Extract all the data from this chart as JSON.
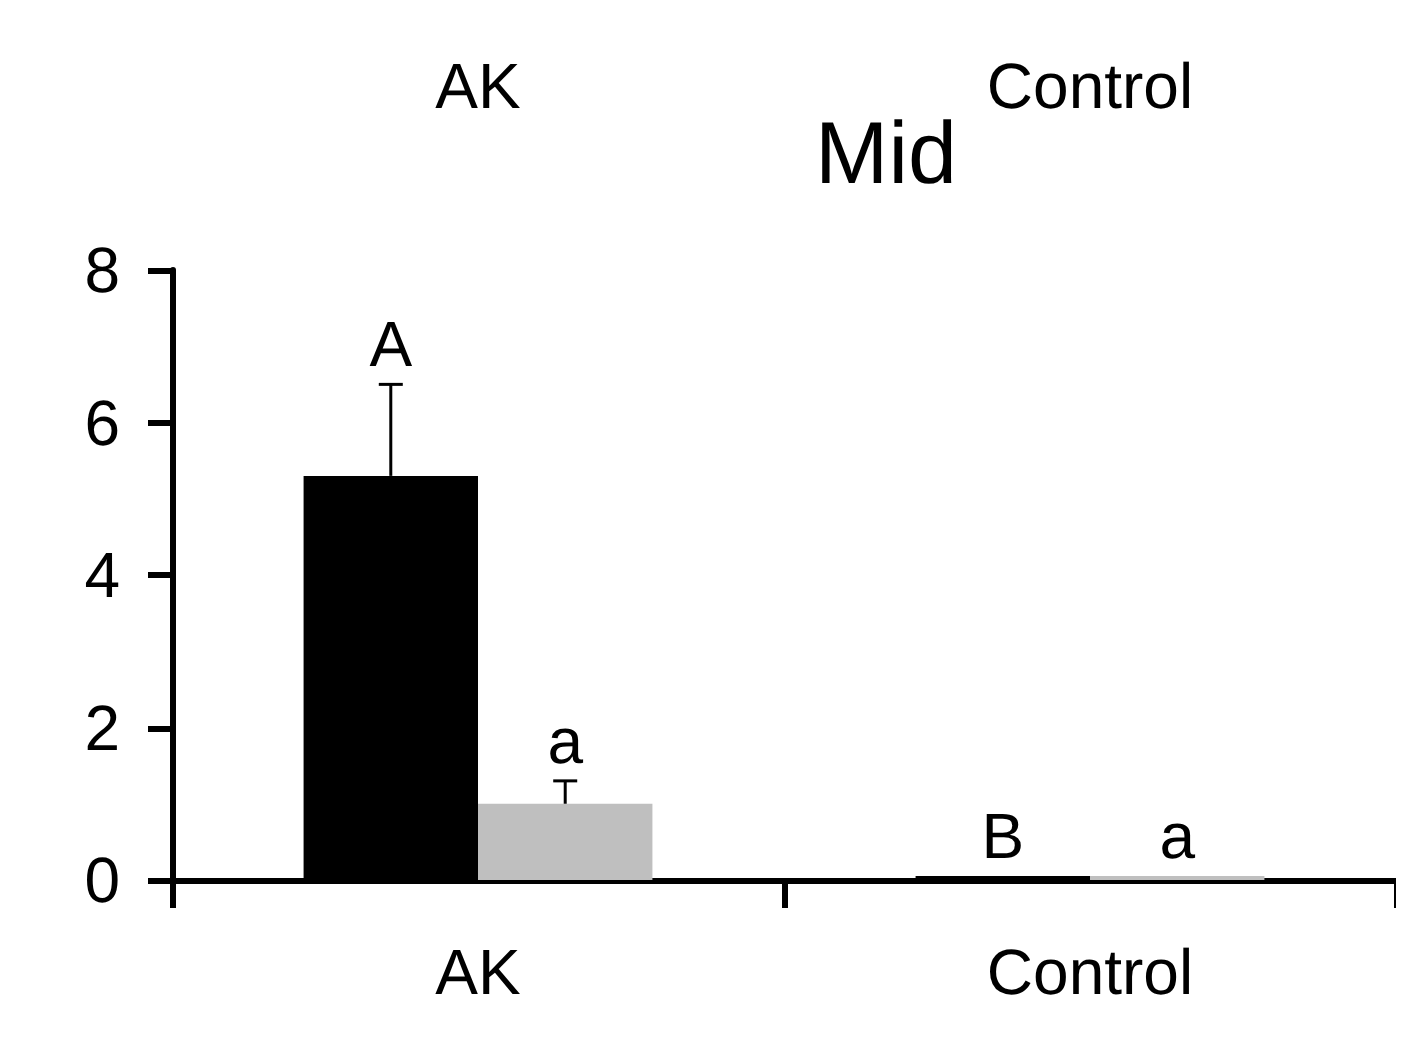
{
  "chart_data": {
    "type": "bar",
    "title": "Mid",
    "categories": [
      "AK",
      "Control"
    ],
    "series": [
      {
        "color": "#000000",
        "values": [
          5.3,
          0
        ],
        "errors": [
          1.2,
          null
        ],
        "value_labels": [
          "A",
          "B"
        ]
      },
      {
        "color": "#bfbfbf",
        "values": [
          1.0,
          0
        ],
        "errors": [
          0.3,
          null
        ],
        "value_labels": [
          "a",
          "a"
        ]
      }
    ],
    "ylim": [
      0,
      8
    ],
    "yticks": [
      0,
      2,
      4,
      6,
      8
    ],
    "grid": false,
    "annotations": [
      "AK",
      "Control"
    ]
  }
}
